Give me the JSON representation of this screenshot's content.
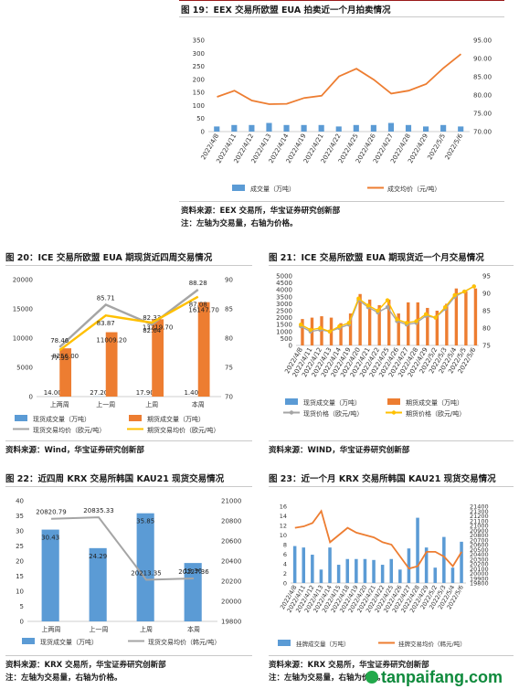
{
  "fig19": {
    "title": "图 19：EEX 交易所欧盟 EUA 拍卖近一个月拍卖情况",
    "source": "资料来源：EEX 交易所，华宝证券研究创新部",
    "note": "注：左轴为交易量，右轴为价格。"
  },
  "fig20": {
    "title": "图 20：ICE 交易所欧盟 EUA 期现货近四周交易情况",
    "source": "资料来源：Wind，华宝证券研究创新部"
  },
  "fig21": {
    "title": "图 21：ICE 交易所欧盟 EUA 期现货近一个月交易情况",
    "source": "资料来源：WIND，华宝证券研究创新部"
  },
  "fig22": {
    "title": "图 22：近四周 KRX 交易所韩国 KAU21 现货交易情况",
    "source": "资料来源：KRX 交易所，华宝证券研究创新部",
    "note": "注：左轴为交易量，右轴为价格。"
  },
  "fig23": {
    "title": "图 23：近一个月 KRX 交易所韩国 KAU21 现货交易情况",
    "source": "资料来源：KRX 交易所，华宝证券研究创新部",
    "note": "注：左轴为交易量，右轴为价格。"
  },
  "extra_note": "注：左轴为交易量，右轴为价格。",
  "watermark": "tanpaifang.com",
  "chart_data": [
    {
      "id": "fig19",
      "type": "bar",
      "categories": [
        "2022/4/8",
        "2022/4/11",
        "2022/4/12",
        "2022/4/13",
        "2022/4/14",
        "2022/4/19",
        "2022/4/21",
        "2022/4/22",
        "2022/4/25",
        "2022/4/26",
        "2022/4/27",
        "2022/4/28",
        "2022/4/29",
        "2022/5/5",
        "2022/5/6"
      ],
      "series": [
        {
          "name": "成交量（万吨）",
          "type": "bar",
          "axis": "left",
          "color": "#5b9bd5",
          "values": [
            19.6,
            25.2,
            25.2,
            33.1,
            25.2,
            25.2,
            25.2,
            19.6,
            25.2,
            25.2,
            33.1,
            25.2,
            19.6,
            25.2,
            19.6
          ]
        },
        {
          "name": "成交均价（元/吨）",
          "type": "line",
          "axis": "right",
          "color": "#ed7d31",
          "values": [
            79.5,
            81.2,
            78.5,
            77.5,
            77.6,
            79.2,
            79.8,
            85.1,
            87.2,
            84.2,
            80.4,
            81.2,
            83.0,
            87.4,
            91.2
          ]
        }
      ],
      "ylim_left": [
        0,
        350
      ],
      "yticks_left": [
        0,
        50,
        100,
        150,
        200,
        250,
        300,
        350
      ],
      "ylim_right": [
        70,
        95
      ],
      "yticks_right": [
        "70.00",
        "75.00",
        "80.00",
        "85.00",
        "90.00",
        "95.00"
      ],
      "legend": "bottom"
    },
    {
      "id": "fig20",
      "type": "bar",
      "categories": [
        "上两周",
        "上一周",
        "上周",
        "本周"
      ],
      "series": [
        {
          "name": "现货成交量（万吨）",
          "type": "bar",
          "axis": "left",
          "color": "#5b9bd5",
          "values": [
            14.0,
            27.2,
            17.9,
            1.4
          ],
          "labels": [
            "14.00",
            "27.20",
            "17.90",
            "1.40"
          ]
        },
        {
          "name": "期货成交量（万吨）",
          "type": "bar",
          "axis": "left",
          "color": "#ed7d31",
          "values": [
            8256.0,
            11009.2,
            13219.7,
            16147.7
          ],
          "labels": [
            "8256.00",
            "11009.20",
            "13219.70",
            "16147.70"
          ]
        },
        {
          "name": "现货交易均价（欧元/吨）",
          "type": "line",
          "axis": "right",
          "color": "#a5a5a5",
          "values": [
            78.46,
            85.71,
            82.33,
            88.28
          ],
          "labels": [
            "78.46",
            "85.71",
            "82.33",
            "88.28"
          ]
        },
        {
          "name": "期货交易均价（欧元/吨）",
          "type": "line",
          "axis": "right",
          "color": "#ffc000",
          "values": [
            77.93,
            83.87,
            82.64,
            87.08
          ],
          "labels": [
            "77.93",
            "83.87",
            "82.64",
            "87.08"
          ]
        }
      ],
      "ylim_left": [
        0,
        20000
      ],
      "yticks_left": [
        0,
        5000,
        10000,
        15000,
        20000
      ],
      "ylim_right": [
        70,
        90
      ],
      "yticks_right": [
        70,
        75,
        80,
        85,
        90
      ],
      "legend": "bottom"
    },
    {
      "id": "fig21",
      "type": "bar",
      "categories": [
        "2022/4/8",
        "2022/4/11",
        "2022/4/12",
        "2022/4/13",
        "2022/4/14",
        "2022/4/19",
        "2022/4/20",
        "2022/4/21",
        "2022/4/22",
        "2022/4/25",
        "2022/4/26",
        "2022/4/27",
        "2022/4/28",
        "2022/4/29",
        "2022/5/2",
        "2022/5/3",
        "2022/5/4",
        "2022/5/5",
        "2022/5/6"
      ],
      "series": [
        {
          "name": "现货成交量（万吨）",
          "type": "bar",
          "axis": "left",
          "color": "#5b9bd5",
          "values": [
            3,
            2,
            5,
            4,
            3,
            2,
            6,
            2,
            3,
            4,
            3,
            2,
            3,
            4,
            2,
            3,
            2,
            3,
            2
          ]
        },
        {
          "name": "期货成交量（万吨）",
          "type": "bar",
          "axis": "left",
          "color": "#ed7d31",
          "values": [
            1900,
            2000,
            2100,
            2000,
            1600,
            2300,
            3700,
            3300,
            2900,
            3300,
            2300,
            3100,
            3100,
            2700,
            2500,
            3000,
            4100,
            3900,
            4100
          ]
        },
        {
          "name": "现货价格（欧元/吨）",
          "type": "line",
          "axis": "right",
          "color": "#a5a5a5",
          "values": [
            80.5,
            79.0,
            79.5,
            79.0,
            80.0,
            81.0,
            88.0,
            86.0,
            84.5,
            86.0,
            82.0,
            81.0,
            81.5,
            83.5,
            83.0,
            85.5,
            89.0,
            90.5,
            92.0
          ]
        },
        {
          "name": "期货价格（欧元/吨）",
          "type": "line",
          "axis": "right",
          "color": "#ffc000",
          "values": [
            81.0,
            79.5,
            80.0,
            79.0,
            80.5,
            81.5,
            88.5,
            86.5,
            85.0,
            88.0,
            82.5,
            81.5,
            82.0,
            84.0,
            83.0,
            86.0,
            89.5,
            90.5,
            92.0
          ]
        }
      ],
      "ylim_left": [
        0,
        5000
      ],
      "yticks_left": [
        0,
        500,
        1000,
        1500,
        2000,
        2500,
        3000,
        3500,
        4000,
        4500,
        5000
      ],
      "ylim_right": [
        75,
        95
      ],
      "yticks_right": [
        75,
        80,
        85,
        90,
        95
      ],
      "legend": "bottom"
    },
    {
      "id": "fig22",
      "type": "bar",
      "categories": [
        "上两周",
        "上一周",
        "上周",
        "本周"
      ],
      "series": [
        {
          "name": "现货成交量（万吨）",
          "type": "bar",
          "axis": "left",
          "color": "#5b9bd5",
          "values": [
            30.43,
            24.29,
            35.85,
            19.36
          ],
          "labels": [
            "30.43",
            "24.29",
            "35.85",
            "19.36"
          ]
        },
        {
          "name": "现货交易均价（韩元/吨）",
          "type": "line",
          "axis": "right",
          "color": "#a5a5a5",
          "values": [
            20820.79,
            20835.33,
            20213.35,
            20227.36
          ],
          "labels": [
            "20820.79",
            "20835.33",
            "20213.35",
            "20227.36"
          ]
        }
      ],
      "ylim_left": [
        0,
        40
      ],
      "yticks_left": [
        0,
        5,
        10,
        15,
        20,
        25,
        30,
        35,
        40
      ],
      "ylim_right": [
        19800,
        21000
      ],
      "yticks_right": [
        19800,
        20000,
        20200,
        20400,
        20600,
        20800,
        21000
      ],
      "legend": "bottom"
    },
    {
      "id": "fig23",
      "type": "bar",
      "categories": [
        "2022/4/8",
        "2022/4/11",
        "2022/4/12",
        "2022/4/13",
        "2022/4/14",
        "2022/4/15",
        "2022/4/18",
        "2022/4/19",
        "2022/4/20",
        "2022/4/21",
        "2022/4/22",
        "2022/4/25",
        "2022/4/26",
        "2022/4/27",
        "2022/4/28",
        "2022/4/29",
        "2022/5/2",
        "2022/5/3",
        "2022/5/4",
        "2022/5/6"
      ],
      "series": [
        {
          "name": "挂牌成交量（万吨）",
          "type": "bar",
          "axis": "left",
          "color": "#5b9bd5",
          "values": [
            7.7,
            7.4,
            5.9,
            2.8,
            7.4,
            3.8,
            5.0,
            5.0,
            5.0,
            4.8,
            3.8,
            5.0,
            2.8,
            7.2,
            13.6,
            7.4,
            3.2,
            9.6,
            3.2,
            8.6
          ]
        },
        {
          "name": "挂牌交易均价（韩元/吨）",
          "type": "line",
          "axis": "right",
          "color": "#ed7d31",
          "values": [
            20950,
            20980,
            21050,
            21300,
            20650,
            20800,
            20950,
            20850,
            20800,
            20750,
            20650,
            20600,
            20350,
            20100,
            20150,
            20450,
            20450,
            20350,
            20150,
            20450
          ]
        }
      ],
      "ylim_left": [
        0,
        16
      ],
      "yticks_left": [
        0,
        2,
        4,
        6,
        8,
        10,
        12,
        14,
        16
      ],
      "ylim_right": [
        19800,
        21400
      ],
      "yticks_right": [
        19800,
        19900,
        20000,
        20100,
        20200,
        20300,
        20400,
        20500,
        20600,
        20700,
        20800,
        20900,
        21000,
        21100,
        21200,
        21300,
        21400
      ],
      "legend": "bottom"
    }
  ]
}
